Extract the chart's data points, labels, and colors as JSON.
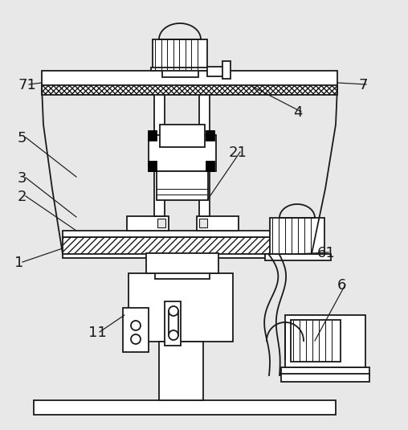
{
  "bg": "#e8e8e8",
  "lc": "#1a1a1a",
  "wh": "#ffffff",
  "lw": 1.3,
  "lw_thin": 0.75,
  "fs": 13
}
